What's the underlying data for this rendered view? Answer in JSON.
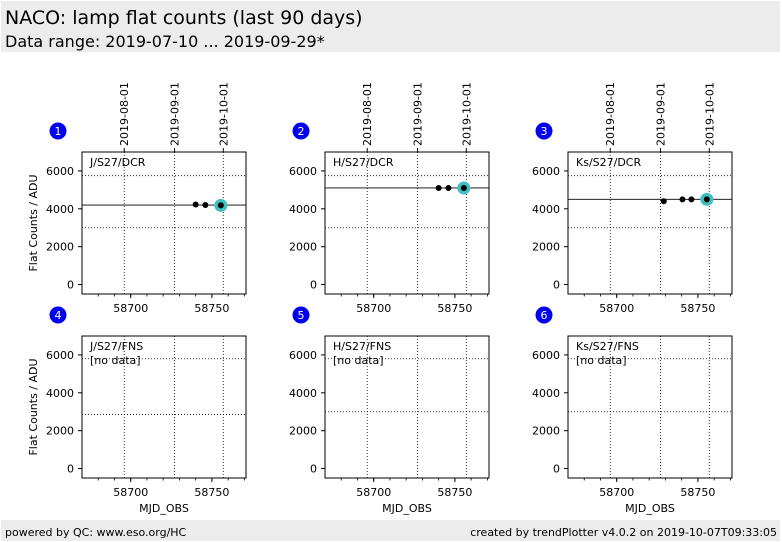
{
  "header": {
    "title": "NACO: lamp flat counts (last 90 days)",
    "subtitle": "Data range: 2019-07-10 ... 2019-09-29*"
  },
  "footer": {
    "left": "powered by QC: www.eso.org/HC",
    "right": "created by trendPlotter v4.0.2 on 2019-10-07T09:33:05"
  },
  "colors": {
    "marker_badge": "#0000ee",
    "last_point_highlight": "#3fbfbf",
    "point": "#000000",
    "header_bg": "#ececec"
  },
  "chart_data": [
    {
      "type": "scatter",
      "panel": "1",
      "label": "J/S27/DCR",
      "has_data": true,
      "ylabel": "Flat Counts / ADU",
      "xlabel": "",
      "xlim": [
        58670,
        58771
      ],
      "ylim": [
        -500,
        7000
      ],
      "yticks": [
        0,
        2000,
        4000,
        6000
      ],
      "xticks": [
        58700,
        58750
      ],
      "x_top_dates": [
        "2019-08-01",
        "2019-09-01",
        "2019-10-01"
      ],
      "date_mjd": [
        58696,
        58727,
        58757
      ],
      "average": 4200,
      "thresholds": [
        3000,
        5750
      ],
      "points": [
        {
          "x": 58740,
          "y": 4230
        },
        {
          "x": 58746,
          "y": 4200
        },
        {
          "x": 58755.5,
          "y": 4180
        }
      ],
      "last": {
        "x": 58755.5,
        "y": 4180
      }
    },
    {
      "type": "scatter",
      "panel": "2",
      "label": "H/S27/DCR",
      "has_data": true,
      "ylabel": "",
      "xlabel": "",
      "xlim": [
        58670,
        58771
      ],
      "ylim": [
        -500,
        7000
      ],
      "yticks": [
        0,
        2000,
        4000,
        6000
      ],
      "xticks": [
        58700,
        58750
      ],
      "x_top_dates": [
        "2019-08-01",
        "2019-09-01",
        "2019-10-01"
      ],
      "date_mjd": [
        58696,
        58727,
        58757
      ],
      "average": 5100,
      "thresholds": [
        3000,
        5750
      ],
      "points": [
        {
          "x": 58740,
          "y": 5100
        },
        {
          "x": 58746,
          "y": 5100
        },
        {
          "x": 58755.5,
          "y": 5100
        }
      ],
      "last": {
        "x": 58755.5,
        "y": 5100
      }
    },
    {
      "type": "scatter",
      "panel": "3",
      "label": "Ks/S27/DCR",
      "has_data": true,
      "ylabel": "",
      "xlabel": "",
      "xlim": [
        58670,
        58771
      ],
      "ylim": [
        -500,
        7000
      ],
      "yticks": [
        0,
        2000,
        4000,
        6000
      ],
      "xticks": [
        58700,
        58750
      ],
      "x_top_dates": [
        "2019-08-01",
        "2019-09-01",
        "2019-10-01"
      ],
      "date_mjd": [
        58696,
        58727,
        58757
      ],
      "average": 4500,
      "thresholds": [
        3000,
        5750
      ],
      "points": [
        {
          "x": 58729,
          "y": 4400
        },
        {
          "x": 58740.5,
          "y": 4500
        },
        {
          "x": 58746,
          "y": 4500
        },
        {
          "x": 58755.5,
          "y": 4500
        }
      ],
      "last": {
        "x": 58755.5,
        "y": 4500
      }
    },
    {
      "type": "scatter",
      "panel": "4",
      "label": "J/S27/FNS",
      "has_data": false,
      "no_data_text": "[no data]",
      "ylabel": "Flat Counts / ADU",
      "xlabel": "MJD_OBS",
      "xlim": [
        58670,
        58771
      ],
      "ylim": [
        -500,
        7000
      ],
      "yticks": [
        0,
        2000,
        4000,
        6000
      ],
      "xticks": [
        58700,
        58750
      ],
      "date_mjd": [
        58696,
        58727,
        58757
      ],
      "thresholds": [
        2850,
        5800
      ],
      "points": []
    },
    {
      "type": "scatter",
      "panel": "5",
      "label": "H/S27/FNS",
      "has_data": false,
      "no_data_text": "[no data]",
      "ylabel": "",
      "xlabel": "MJD_OBS",
      "xlim": [
        58670,
        58771
      ],
      "ylim": [
        -500,
        7000
      ],
      "yticks": [
        0,
        2000,
        4000,
        6000
      ],
      "xticks": [
        58700,
        58750
      ],
      "date_mjd": [
        58696,
        58727,
        58757
      ],
      "thresholds": [
        3000,
        5800
      ],
      "points": []
    },
    {
      "type": "scatter",
      "panel": "6",
      "label": "Ks/S27/FNS",
      "has_data": false,
      "no_data_text": "[no data]",
      "ylabel": "",
      "xlabel": "MJD_OBS",
      "xlim": [
        58670,
        58771
      ],
      "ylim": [
        -500,
        7000
      ],
      "yticks": [
        0,
        2000,
        4000,
        6000
      ],
      "xticks": [
        58700,
        58750
      ],
      "date_mjd": [
        58696,
        58727,
        58757
      ],
      "thresholds": [
        3000,
        5800
      ],
      "points": []
    }
  ]
}
